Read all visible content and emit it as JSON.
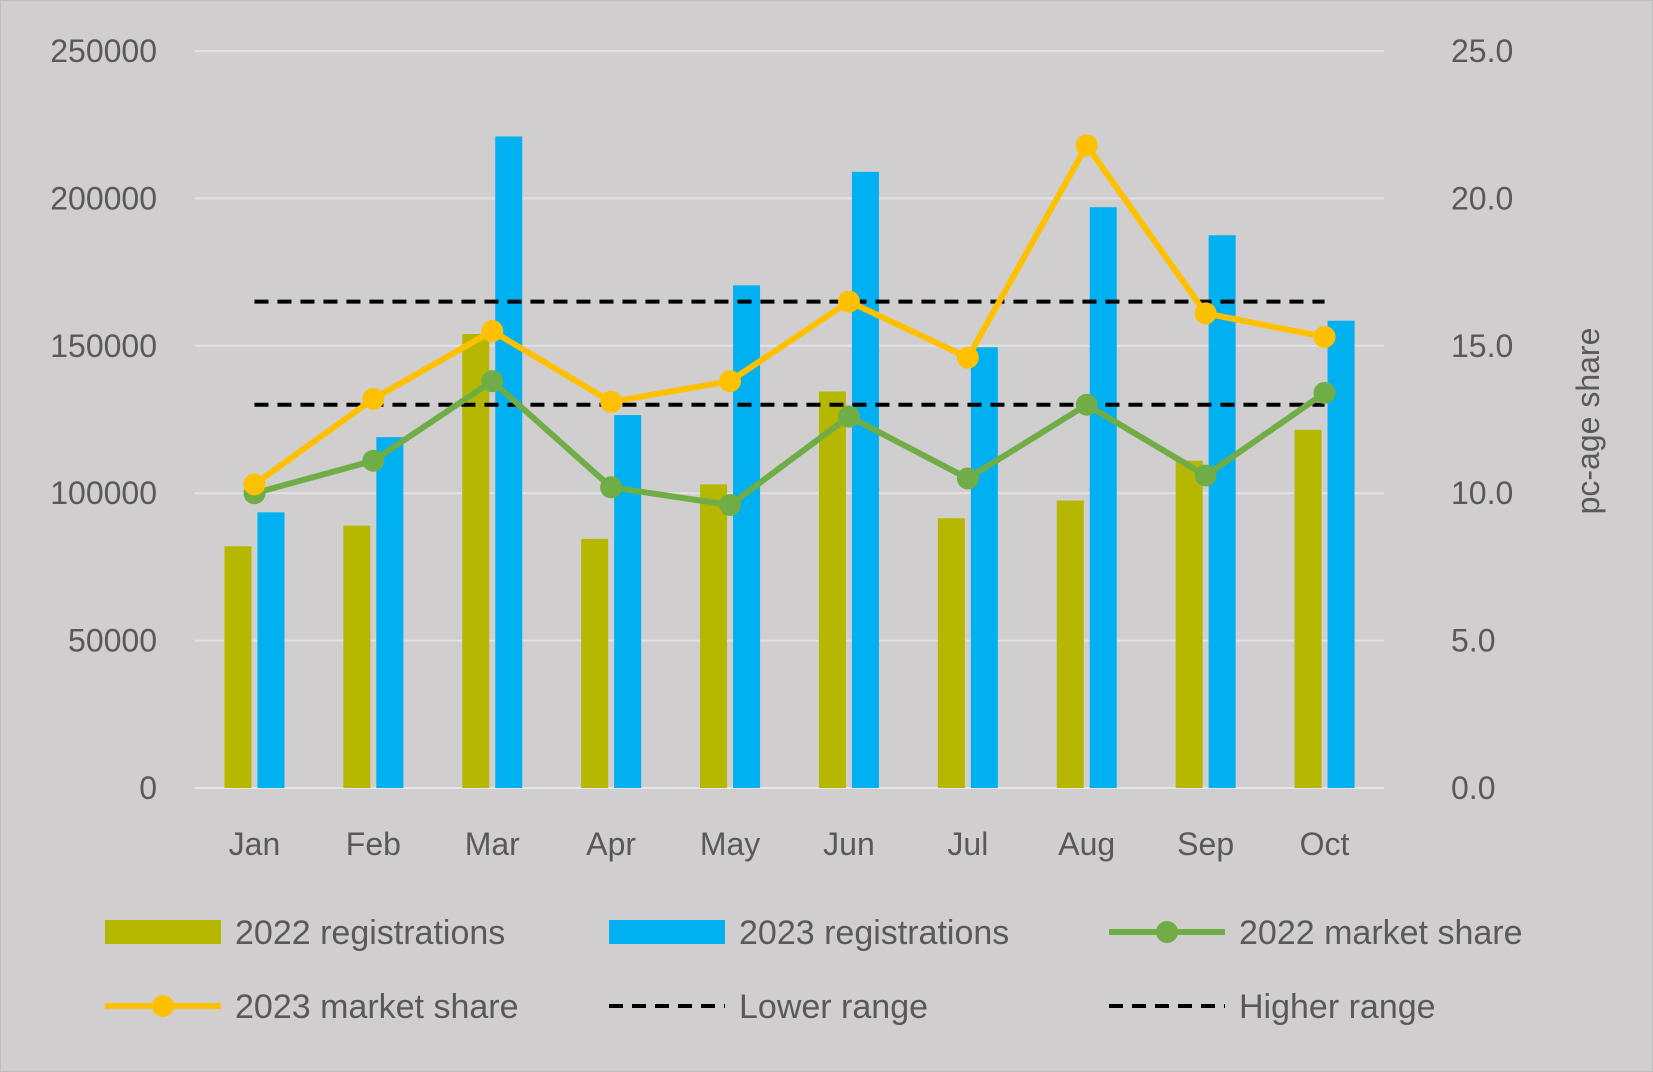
{
  "chart_data": {
    "type": "bar",
    "categories": [
      "Jan",
      "Feb",
      "Mar",
      "Apr",
      "May",
      "Jun",
      "Jul",
      "Aug",
      "Sep",
      "Oct"
    ],
    "bar_series": [
      {
        "name": "2022 registrations",
        "color": "#b5b700",
        "values": [
          82000,
          89000,
          154000,
          84500,
          103000,
          134500,
          91500,
          97500,
          111000,
          121500
        ]
      },
      {
        "name": "2023 registrations",
        "color": "#00b0f0",
        "values": [
          93500,
          119000,
          221000,
          126500,
          170500,
          209000,
          149500,
          197000,
          187500,
          158500
        ]
      }
    ],
    "line_series": [
      {
        "name": "2022 market share",
        "color": "#70ad47",
        "markers": true,
        "dashed": false,
        "values": [
          10.0,
          11.1,
          13.8,
          10.2,
          9.6,
          12.6,
          10.5,
          13.0,
          10.6,
          13.4
        ]
      },
      {
        "name": "2023 market share",
        "color": "#ffc000",
        "markers": true,
        "dashed": false,
        "values": [
          10.3,
          13.2,
          15.5,
          13.1,
          13.8,
          16.5,
          14.6,
          21.8,
          16.1,
          15.3
        ]
      },
      {
        "name": "Lower range",
        "color": "#000000",
        "markers": false,
        "dashed": true,
        "values": [
          13.0,
          13.0,
          13.0,
          13.0,
          13.0,
          13.0,
          13.0,
          13.0,
          13.0,
          13.0
        ]
      },
      {
        "name": "Higher range",
        "color": "#000000",
        "markers": false,
        "dashed": true,
        "values": [
          16.5,
          16.5,
          16.5,
          16.5,
          16.5,
          16.5,
          16.5,
          16.5,
          16.5,
          16.5
        ]
      }
    ],
    "y_left": {
      "ylim": [
        0,
        250000
      ],
      "ticks": [
        "0",
        "50000",
        "100000",
        "150000",
        "200000",
        "250000"
      ],
      "label": ""
    },
    "y_right": {
      "ylim": [
        0,
        25
      ],
      "ticks": [
        "0.0",
        "5.0",
        "10.0",
        "15.0",
        "20.0",
        "25.0"
      ],
      "label": "pc-age share"
    },
    "grid": true,
    "legend_position": "bottom"
  }
}
